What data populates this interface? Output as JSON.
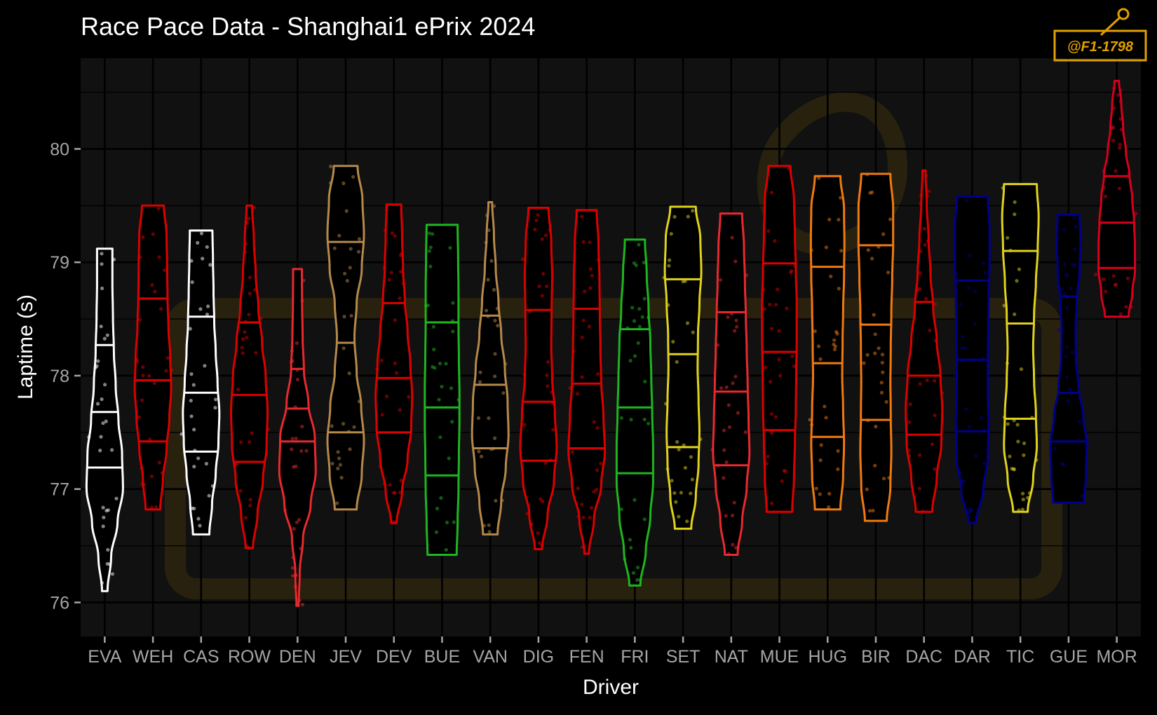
{
  "chart_data": {
    "type": "violin",
    "title": "Race Pace Data - Shanghai1 ePrix 2024",
    "xlabel": "Driver",
    "ylabel": "Laptime (s)",
    "ylim": [
      75.7,
      80.8
    ],
    "yticks": [
      76,
      77,
      78,
      79,
      80
    ],
    "grid": true,
    "background": "#111111",
    "watermark": "@F1-1798",
    "categories": [
      "EVA",
      "WEH",
      "CAS",
      "ROW",
      "DEN",
      "JEV",
      "DEV",
      "BUE",
      "VAN",
      "DIG",
      "FEN",
      "FRI",
      "SET",
      "NAT",
      "MUE",
      "HUG",
      "BIR",
      "DAC",
      "DAR",
      "TIC",
      "GUE",
      "MOR"
    ],
    "series": [
      {
        "driver": "EVA",
        "color": "#ffffff",
        "min": 76.1,
        "max": 79.12,
        "q1": 77.19,
        "median": 77.68,
        "q3": 78.27,
        "w": [
          0.15,
          0.35,
          0.7,
          1.0,
          0.95,
          0.75,
          0.6,
          0.5,
          0.45,
          0.42,
          0.42
        ]
      },
      {
        "driver": "WEH",
        "color": "#dc0000",
        "min": 76.82,
        "max": 79.5,
        "q1": 77.42,
        "median": 77.96,
        "q3": 78.68,
        "w": [
          0.4,
          0.55,
          0.75,
          0.9,
          1.0,
          0.95,
          0.85,
          0.8,
          0.78,
          0.75,
          0.6
        ]
      },
      {
        "driver": "CAS",
        "color": "#ffffff",
        "min": 76.6,
        "max": 79.28,
        "q1": 77.33,
        "median": 77.85,
        "q3": 78.52,
        "w": [
          0.45,
          0.6,
          0.8,
          0.95,
          1.0,
          0.9,
          0.8,
          0.72,
          0.68,
          0.65,
          0.62
        ]
      },
      {
        "driver": "ROW",
        "color": "#dc0000",
        "min": 76.48,
        "max": 79.5,
        "q1": 77.24,
        "median": 77.83,
        "q3": 78.47,
        "w": [
          0.2,
          0.45,
          0.75,
          0.95,
          1.0,
          0.9,
          0.7,
          0.5,
          0.35,
          0.25,
          0.15
        ]
      },
      {
        "driver": "DEN",
        "color": "#e8292f",
        "min": 75.97,
        "max": 78.94,
        "q1": 77.42,
        "median": 77.71,
        "q3": 78.06,
        "w": [
          0.06,
          0.12,
          0.3,
          0.72,
          1.0,
          0.95,
          0.6,
          0.35,
          0.28,
          0.25,
          0.24
        ]
      },
      {
        "driver": "JEV",
        "color": "#b5894b",
        "min": 76.82,
        "max": 79.85,
        "q1": 77.5,
        "median": 78.29,
        "q3": 79.18,
        "w": [
          0.6,
          0.88,
          1.0,
          0.85,
          0.6,
          0.48,
          0.6,
          0.88,
          1.0,
          0.92,
          0.65
        ]
      },
      {
        "driver": "DEV",
        "color": "#dc0000",
        "min": 76.7,
        "max": 79.51,
        "q1": 77.5,
        "median": 77.98,
        "q3": 78.64,
        "w": [
          0.15,
          0.45,
          0.75,
          0.95,
          1.0,
          0.9,
          0.75,
          0.6,
          0.5,
          0.45,
          0.4
        ]
      },
      {
        "driver": "BUE",
        "color": "#1fb51f",
        "min": 76.42,
        "max": 79.33,
        "q1": 77.12,
        "median": 77.72,
        "q3": 78.47,
        "w": [
          0.8,
          0.85,
          0.9,
          0.92,
          0.95,
          0.95,
          0.92,
          0.9,
          0.9,
          0.88,
          0.85
        ]
      },
      {
        "driver": "VAN",
        "color": "#b5894b",
        "min": 76.6,
        "max": 79.53,
        "q1": 77.36,
        "median": 77.92,
        "q3": 78.53,
        "w": [
          0.4,
          0.6,
          0.85,
          1.0,
          0.95,
          0.8,
          0.6,
          0.45,
          0.3,
          0.2,
          0.1
        ]
      },
      {
        "driver": "DIG",
        "color": "#dc0000",
        "min": 76.47,
        "max": 79.48,
        "q1": 77.25,
        "median": 77.77,
        "q3": 78.58,
        "w": [
          0.2,
          0.5,
          0.85,
          1.0,
          0.9,
          0.75,
          0.7,
          0.72,
          0.75,
          0.7,
          0.55
        ]
      },
      {
        "driver": "FEN",
        "color": "#dc0000",
        "min": 76.43,
        "max": 79.46,
        "q1": 77.36,
        "median": 77.93,
        "q3": 78.59,
        "w": [
          0.12,
          0.4,
          0.8,
          1.0,
          0.92,
          0.8,
          0.75,
          0.72,
          0.7,
          0.65,
          0.55
        ]
      },
      {
        "driver": "FRI",
        "color": "#1fb51f",
        "min": 76.15,
        "max": 79.2,
        "q1": 77.14,
        "median": 77.72,
        "q3": 78.41,
        "w": [
          0.3,
          0.6,
          0.85,
          1.0,
          1.0,
          0.95,
          0.9,
          0.85,
          0.75,
          0.65,
          0.55
        ]
      },
      {
        "driver": "SET",
        "color": "#e0d21b",
        "min": 76.65,
        "max": 79.49,
        "q1": 77.37,
        "median": 78.19,
        "q3": 78.85,
        "w": [
          0.45,
          0.7,
          0.85,
          0.9,
          0.85,
          0.8,
          0.82,
          0.9,
          1.0,
          0.95,
          0.7
        ]
      },
      {
        "driver": "NAT",
        "color": "#e8292f",
        "min": 76.42,
        "max": 79.43,
        "q1": 77.21,
        "median": 77.86,
        "q3": 78.56,
        "w": [
          0.35,
          0.6,
          0.85,
          1.0,
          0.95,
          0.9,
          0.85,
          0.8,
          0.75,
          0.7,
          0.6
        ]
      },
      {
        "driver": "MUE",
        "color": "#dc0000",
        "min": 76.8,
        "max": 79.85,
        "q1": 77.52,
        "median": 78.21,
        "q3": 78.99,
        "w": [
          0.7,
          0.8,
          0.85,
          0.9,
          0.92,
          0.95,
          0.95,
          0.9,
          0.85,
          0.8,
          0.6
        ]
      },
      {
        "driver": "HUG",
        "color": "#f07a10",
        "min": 76.82,
        "max": 79.76,
        "q1": 77.46,
        "median": 78.11,
        "q3": 78.96,
        "w": [
          0.7,
          0.85,
          0.9,
          0.85,
          0.8,
          0.82,
          0.85,
          0.9,
          0.92,
          0.9,
          0.7
        ]
      },
      {
        "driver": "BIR",
        "color": "#f07a10",
        "min": 76.72,
        "max": 79.78,
        "q1": 77.61,
        "median": 78.45,
        "q3": 79.15,
        "w": [
          0.6,
          0.8,
          0.85,
          0.82,
          0.8,
          0.82,
          0.85,
          0.9,
          0.95,
          0.95,
          0.8
        ]
      },
      {
        "driver": "DAC",
        "color": "#dc0000",
        "min": 76.8,
        "max": 79.81,
        "q1": 77.48,
        "median": 78.0,
        "q3": 78.65,
        "w": [
          0.45,
          0.7,
          0.95,
          1.0,
          0.9,
          0.7,
          0.5,
          0.35,
          0.25,
          0.15,
          0.08
        ]
      },
      {
        "driver": "DAR",
        "color": "#00008b",
        "min": 76.7,
        "max": 79.58,
        "q1": 77.51,
        "median": 78.14,
        "q3": 78.84,
        "w": [
          0.2,
          0.6,
          0.85,
          0.9,
          0.85,
          0.85,
          0.88,
          0.9,
          0.95,
          0.95,
          0.85
        ]
      },
      {
        "driver": "TIC",
        "color": "#e0d21b",
        "min": 76.8,
        "max": 79.69,
        "q1": 77.62,
        "median": 78.46,
        "q3": 79.1,
        "w": [
          0.4,
          0.7,
          0.9,
          0.85,
          0.75,
          0.7,
          0.75,
          0.85,
          0.95,
          1.0,
          0.9
        ]
      },
      {
        "driver": "GUE",
        "color": "#00008b",
        "min": 76.88,
        "max": 79.42,
        "q1": 77.42,
        "median": 77.85,
        "q3": 78.7,
        "w": [
          0.85,
          0.95,
          1.0,
          0.8,
          0.55,
          0.4,
          0.38,
          0.45,
          0.6,
          0.65,
          0.6
        ]
      },
      {
        "driver": "MOR",
        "color": "#d6001c",
        "min": 78.52,
        "max": 80.6,
        "q1": 78.95,
        "median": 79.35,
        "q3": 79.76,
        "w": [
          0.65,
          0.85,
          1.0,
          1.0,
          0.95,
          0.85,
          0.7,
          0.5,
          0.35,
          0.25,
          0.12
        ]
      }
    ]
  }
}
